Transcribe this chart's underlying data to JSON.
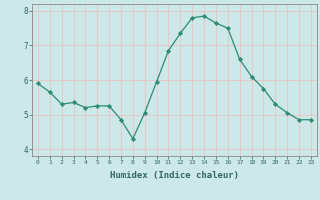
{
  "x": [
    0,
    1,
    2,
    3,
    4,
    5,
    6,
    7,
    8,
    9,
    10,
    11,
    12,
    13,
    14,
    15,
    16,
    17,
    18,
    19,
    20,
    21,
    22,
    23
  ],
  "y": [
    5.9,
    5.65,
    5.3,
    5.35,
    5.2,
    5.25,
    5.25,
    4.85,
    4.3,
    5.05,
    5.95,
    6.85,
    7.35,
    7.8,
    7.85,
    7.65,
    7.5,
    6.6,
    6.1,
    5.75,
    5.3,
    5.05,
    4.85,
    4.85
  ],
  "xlabel": "Humidex (Indice chaleur)",
  "ylim": [
    3.8,
    8.2
  ],
  "xlim": [
    -0.5,
    23.5
  ],
  "yticks": [
    4,
    5,
    6,
    7,
    8
  ],
  "xticks": [
    0,
    1,
    2,
    3,
    4,
    5,
    6,
    7,
    8,
    9,
    10,
    11,
    12,
    13,
    14,
    15,
    16,
    17,
    18,
    19,
    20,
    21,
    22,
    23
  ],
  "line_color": "#2e8b74",
  "marker_color": "#2e8b74",
  "bg_color": "#cce8e8",
  "grid_color": "#e8c8c8",
  "axis_color": "#888888",
  "tick_color": "#336666"
}
